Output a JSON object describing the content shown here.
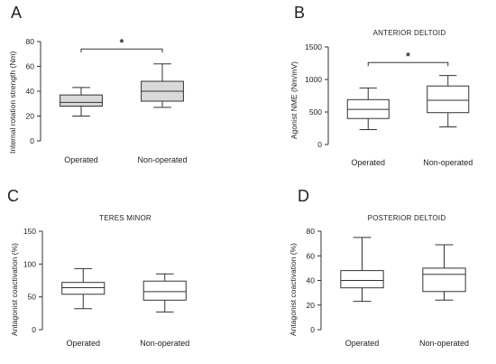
{
  "figure": {
    "panels": [
      {
        "letter": "A",
        "title": "",
        "ylabel": "Internal rotation strength (Nm)"
      },
      {
        "letter": "B",
        "title": "ANTERIOR DELTOID",
        "ylabel": "Agonist NME (Nm/mV)"
      },
      {
        "letter": "C",
        "title": "TERES MINOR",
        "ylabel": "Antagonist coactivation (%)"
      },
      {
        "letter": "D",
        "title": "POSTERIOR DELTOID",
        "ylabel": "Antagonist coactivation (%)"
      }
    ]
  },
  "chart_data": [
    {
      "type": "box",
      "title": "",
      "xlabel": "",
      "ylabel": "Internal rotation strength (Nm)",
      "categories": [
        "Operated",
        "Non-operated"
      ],
      "ylim": [
        0,
        80
      ],
      "yticks": [
        "0",
        "20",
        "40",
        "60",
        "80"
      ],
      "boxes": [
        {
          "min": 20,
          "q1": 28,
          "median": 31,
          "q3": 37,
          "max": 43,
          "fill": "#d9d9d9"
        },
        {
          "min": 27,
          "q1": 32,
          "median": 40,
          "q3": 48,
          "max": 62,
          "fill": "#d9d9d9"
        }
      ],
      "significance": {
        "label": "*",
        "from": 0,
        "to": 1,
        "y": 74
      }
    },
    {
      "type": "box",
      "title": "ANTERIOR DELTOID",
      "xlabel": "",
      "ylabel": "Agonist NME (Nm/mV)",
      "categories": [
        "Operated",
        "Non-operated"
      ],
      "ylim": [
        0,
        1500
      ],
      "yticks": [
        "0",
        "500",
        "1000",
        "1500"
      ],
      "boxes": [
        {
          "min": 230,
          "q1": 400,
          "median": 540,
          "q3": 690,
          "max": 870,
          "fill": "#ffffff"
        },
        {
          "min": 270,
          "q1": 490,
          "median": 680,
          "q3": 900,
          "max": 1060,
          "fill": "#ffffff"
        }
      ],
      "significance": {
        "label": "*",
        "from": 0,
        "to": 1,
        "y": 1260
      }
    },
    {
      "type": "box",
      "title": "TERES MINOR",
      "xlabel": "",
      "ylabel": "Antagonist coactivation (%)",
      "categories": [
        "Operated",
        "Non-operated"
      ],
      "ylim": [
        0,
        150
      ],
      "yticks": [
        "0",
        "50",
        "100",
        "150"
      ],
      "boxes": [
        {
          "min": 32,
          "q1": 54,
          "median": 64,
          "q3": 72,
          "max": 93,
          "fill": "#ffffff"
        },
        {
          "min": 27,
          "q1": 45,
          "median": 58,
          "q3": 74,
          "max": 85,
          "fill": "#ffffff"
        }
      ],
      "significance": null
    },
    {
      "type": "box",
      "title": "POSTERIOR DELTOID",
      "xlabel": "",
      "ylabel": "Antagonist coactivation (%)",
      "categories": [
        "Operated",
        "Non-operated"
      ],
      "ylim": [
        0,
        80
      ],
      "yticks": [
        "0",
        "20",
        "40",
        "60",
        "80"
      ],
      "boxes": [
        {
          "min": 23,
          "q1": 34,
          "median": 40,
          "q3": 48,
          "max": 75,
          "fill": "#ffffff"
        },
        {
          "min": 24,
          "q1": 31,
          "median": 45,
          "q3": 50,
          "max": 69,
          "fill": "#ffffff"
        }
      ],
      "significance": null
    }
  ]
}
